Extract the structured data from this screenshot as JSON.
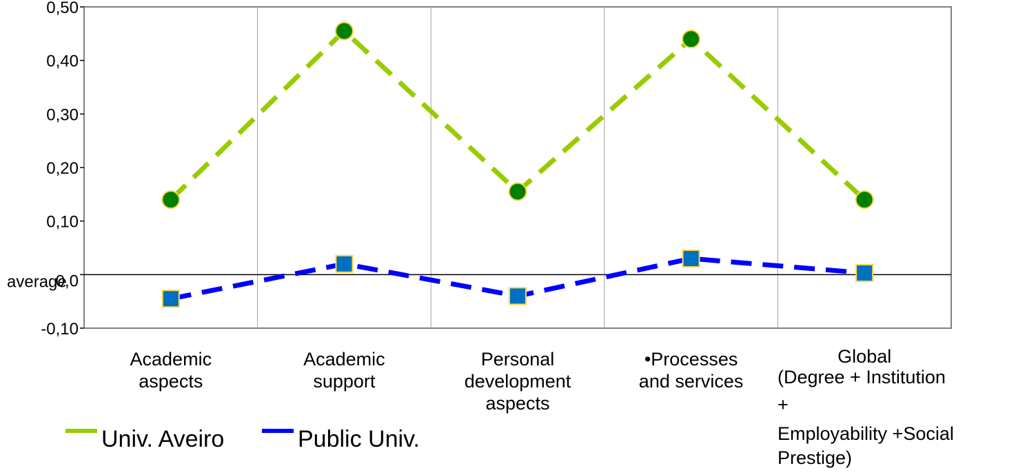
{
  "chart_data": {
    "type": "line",
    "categories": [
      "Academic aspects",
      "Academic support",
      "Personal development aspects",
      "•Processes and services",
      "Global (Degree + Institution + Employability +Social Prestige)"
    ],
    "category_label_lines": [
      [
        "Academic",
        "aspects"
      ],
      [
        "Academic",
        "support"
      ],
      [
        "Personal",
        "development",
        "aspects"
      ],
      [
        "•Processes",
        "and services"
      ],
      [
        "Global",
        "(Degree + Institution",
        "+",
        "Employability +Social",
        "Prestige)"
      ]
    ],
    "series": [
      {
        "name": "Univ. Aveiro",
        "values": [
          0.14,
          0.455,
          0.155,
          0.44,
          0.14
        ],
        "color": "#99cc00",
        "marker": "circle",
        "marker_color": "#008000"
      },
      {
        "name": "Public Univ.",
        "values": [
          -0.045,
          0.02,
          -0.04,
          0.03,
          0.003
        ],
        "color": "#0000ff",
        "marker": "square",
        "marker_color": "#0070c0"
      }
    ],
    "ylim": [
      -0.1,
      0.5
    ],
    "yticks": [
      "-0,10",
      "0,10",
      "0,20",
      "0,30",
      "0,40",
      "0,50"
    ],
    "ytick_values": [
      -0.1,
      0.1,
      0.2,
      0.3,
      0.4,
      0.5
    ],
    "hidden_tick_label": "0,0",
    "baseline_label": "average",
    "grid": "vertical category dividers",
    "legend_position": "bottom-left"
  }
}
